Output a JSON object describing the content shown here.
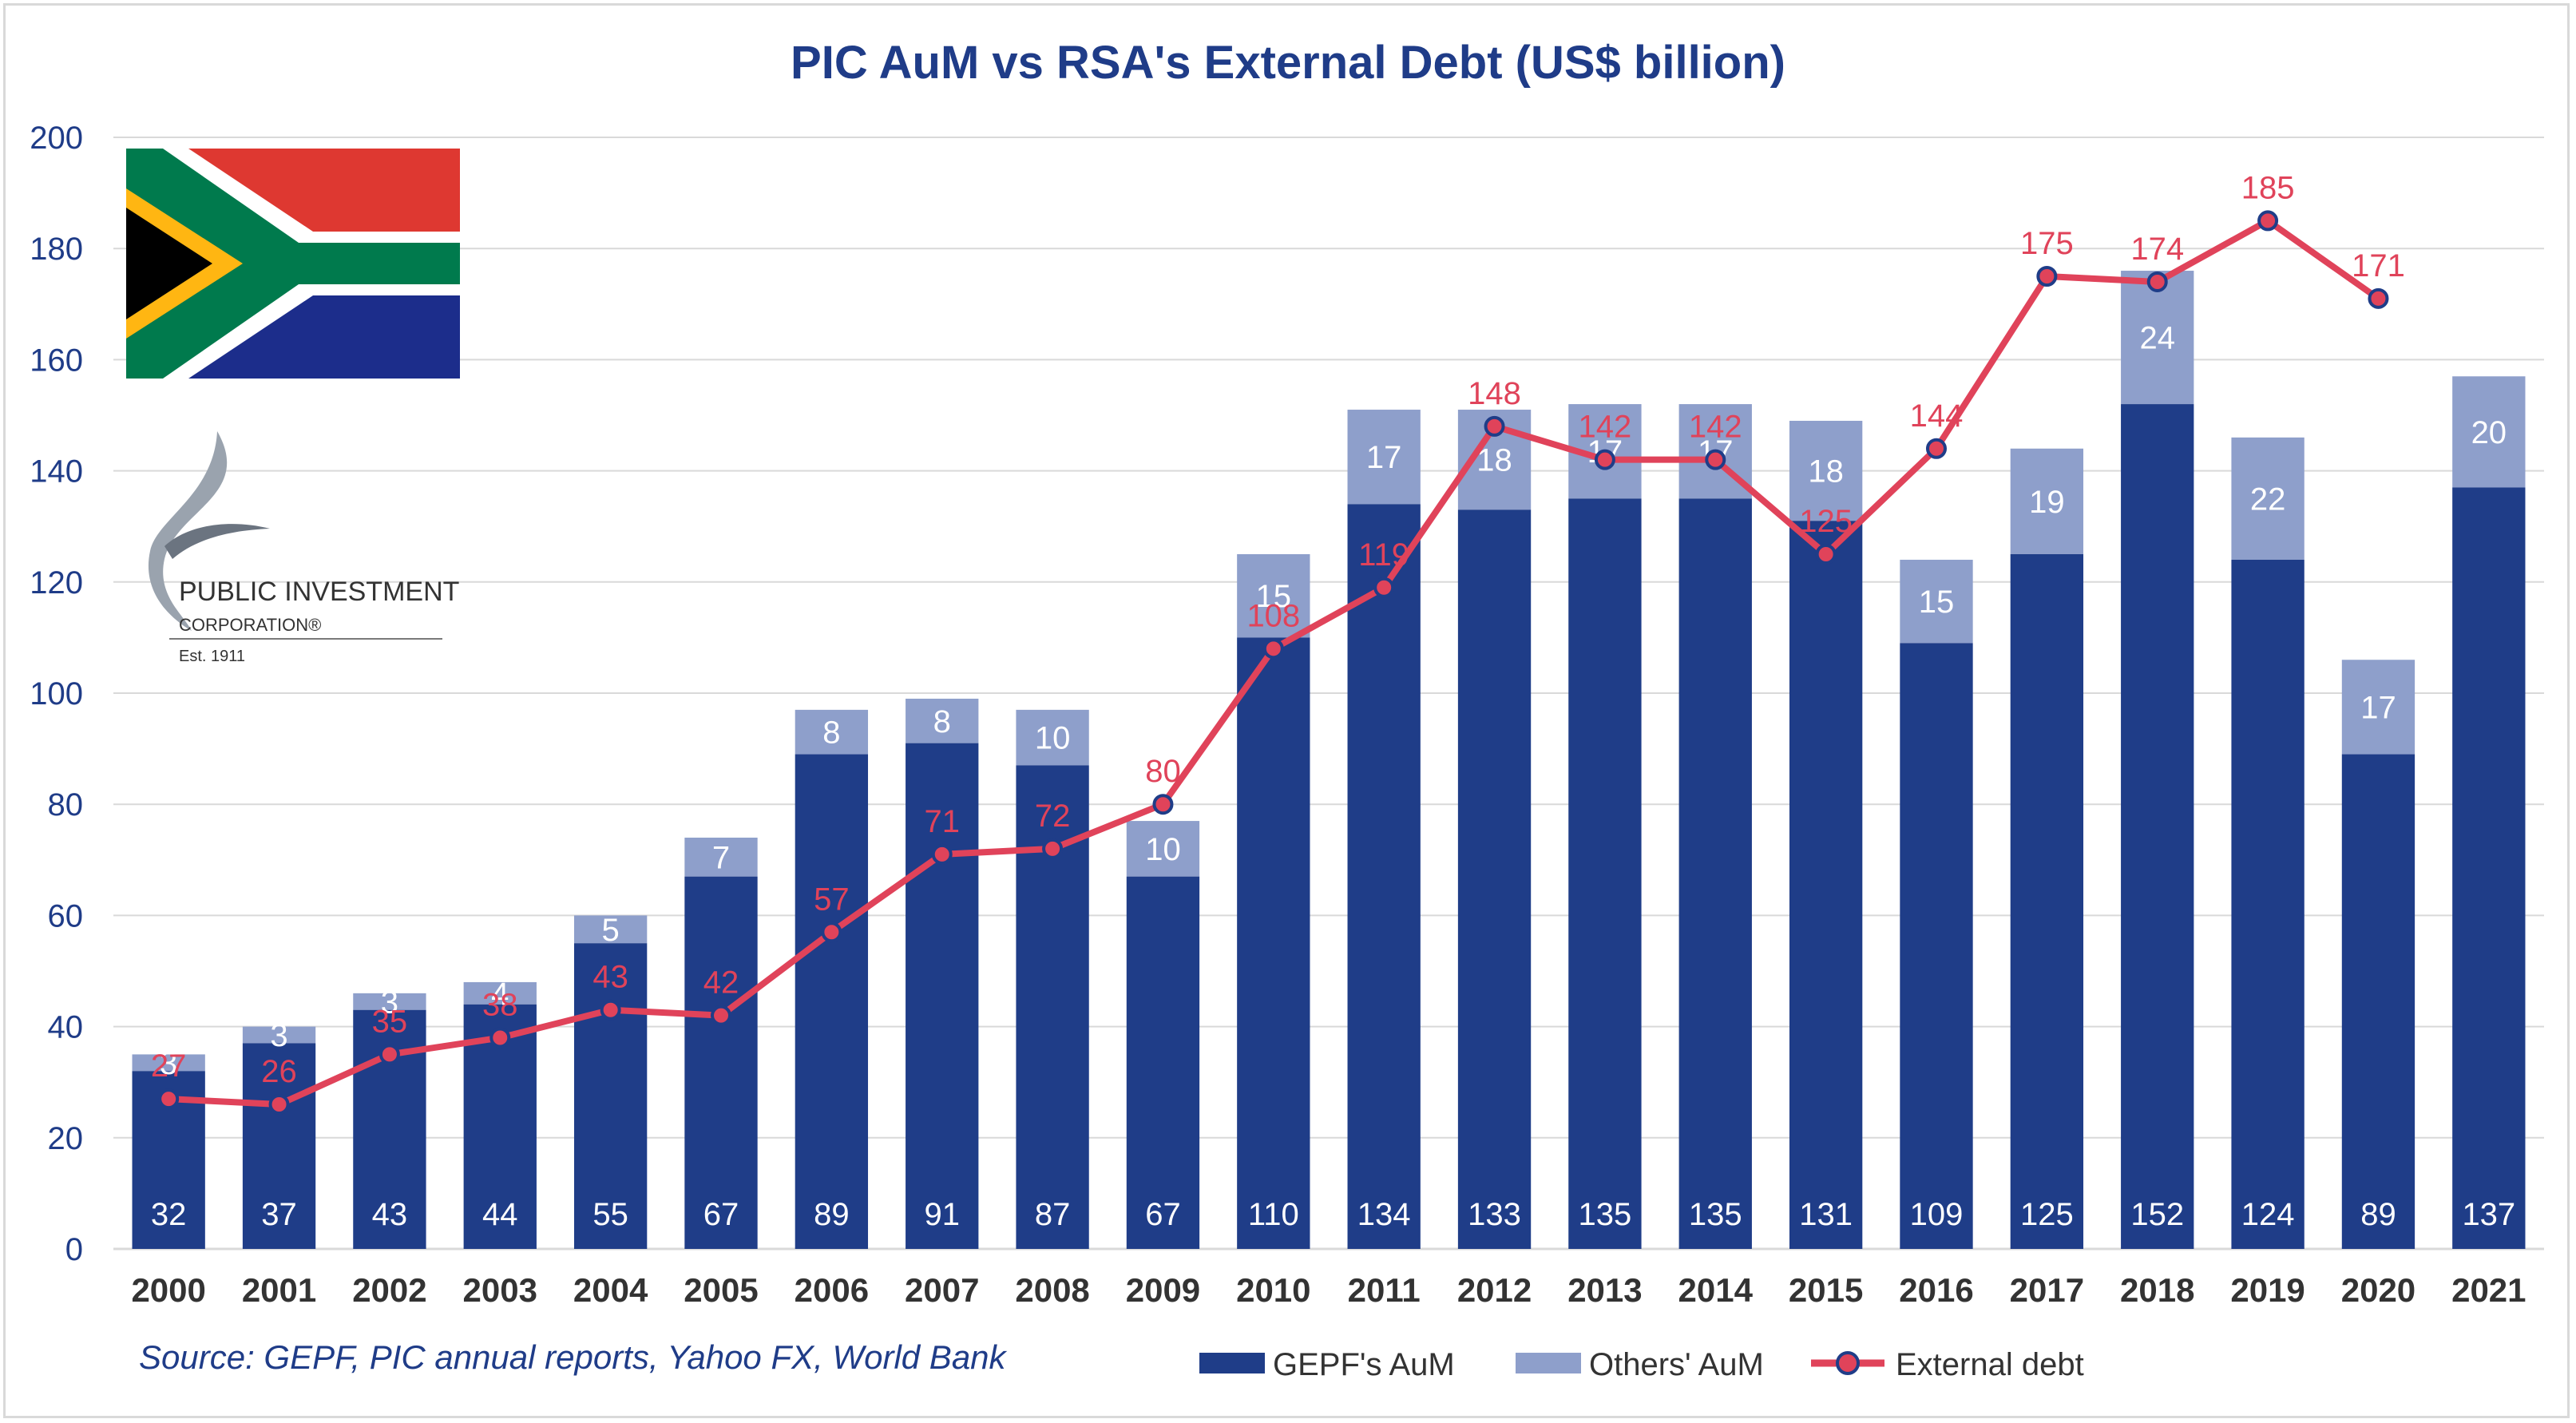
{
  "colors": {
    "gepf": "#1f3d88",
    "others": "#8e9fcb",
    "line": "#e0435a",
    "title": "#1f3c88",
    "grid": "#d9d9d9"
  },
  "logo": {
    "name_line1": "PUBLIC INVESTMENT",
    "name_line2": "CORPORATION®",
    "est": "Est. 1911"
  },
  "source_text": "Source: GEPF, PIC annual reports, Yahoo FX, World Bank",
  "chart_data": {
    "type": "bar",
    "stacked": true,
    "title": "PIC AuM vs RSA's External Debt (US$ billion)",
    "categories": [
      "2000",
      "2001",
      "2002",
      "2003",
      "2004",
      "2005",
      "2006",
      "2007",
      "2008",
      "2009",
      "2010",
      "2011",
      "2012",
      "2013",
      "2014",
      "2015",
      "2016",
      "2017",
      "2018",
      "2019",
      "2020",
      "2021"
    ],
    "yticks": [
      0,
      20,
      40,
      60,
      80,
      100,
      120,
      140,
      160,
      180,
      200
    ],
    "ylim": [
      0,
      200
    ],
    "grid": true,
    "legend_position": "bottom-right",
    "series": [
      {
        "name": "GEPF's AuM",
        "type": "bar",
        "values": [
          32,
          37,
          43,
          44,
          55,
          67,
          89,
          91,
          87,
          67,
          110,
          134,
          133,
          135,
          135,
          131,
          109,
          125,
          152,
          124,
          89,
          137
        ],
        "labels": [
          "32",
          "37",
          "43",
          "44",
          "55",
          "67",
          "89",
          "91",
          "87",
          "67",
          "110",
          "134",
          "133",
          "135",
          "135",
          "131",
          "109",
          "125",
          "152",
          "124",
          "89",
          "137"
        ]
      },
      {
        "name": "Others' AuM",
        "type": "bar",
        "values": [
          3,
          3,
          3,
          4,
          5,
          7,
          8,
          8,
          10,
          10,
          15,
          17,
          18,
          17,
          17,
          18,
          15,
          19,
          24,
          22,
          17,
          20
        ],
        "labels": [
          "3",
          "3",
          "3",
          "4",
          "5",
          "7",
          "8",
          "8",
          "10",
          "10",
          "15",
          "17",
          "18",
          "17",
          "17",
          "18",
          "15",
          "19",
          "24",
          "22",
          "17",
          "20"
        ]
      },
      {
        "name": "External debt",
        "type": "line",
        "values": [
          27,
          26,
          35,
          38,
          43,
          42,
          57,
          71,
          72,
          80,
          108,
          119,
          148,
          142,
          142,
          125,
          144,
          175,
          174,
          185,
          171,
          null
        ],
        "labels": [
          "27",
          "26",
          "35",
          "38",
          "43",
          "42",
          "57",
          "71",
          "72",
          "80",
          "108",
          "119",
          "148",
          "142",
          "142",
          "125",
          "144",
          "175",
          "174",
          "185",
          "171",
          ""
        ]
      }
    ]
  }
}
